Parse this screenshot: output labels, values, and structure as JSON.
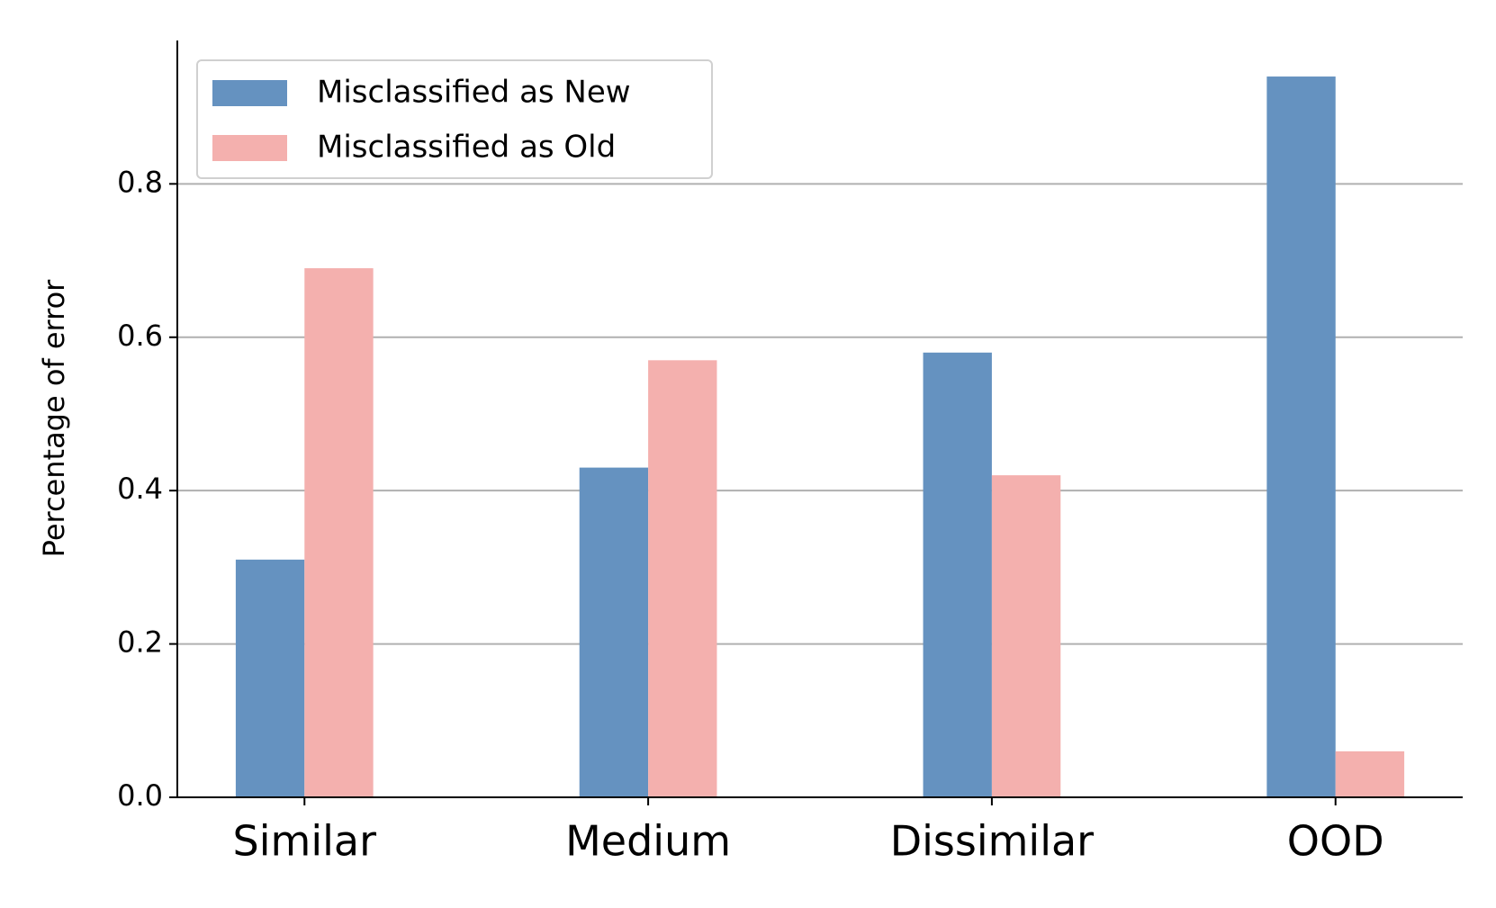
{
  "chart_data": {
    "type": "bar",
    "y_label": "Percentage of error",
    "categories": [
      "Similar",
      "Medium",
      "Dissimilar",
      "OOD"
    ],
    "series": [
      {
        "name": "Misclassified as New",
        "color": "#6592c0",
        "values": [
          0.31,
          0.43,
          0.58,
          0.94
        ]
      },
      {
        "name": "Misclassified as Old",
        "color": "#f4b0ae",
        "values": [
          0.69,
          0.57,
          0.42,
          0.06
        ]
      }
    ],
    "ylim": [
      0,
      0.987
    ],
    "yticks": [
      {
        "value": 0,
        "label": "0.0"
      },
      0.2,
      0.4,
      0.6,
      0.8
    ],
    "grid": true,
    "legend": "upper-left"
  }
}
